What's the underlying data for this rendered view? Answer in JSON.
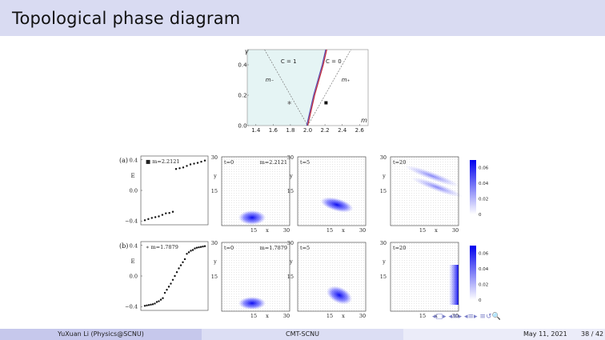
{
  "slide": {
    "title": "Topological phase diagram",
    "footer_author": "YuXuan Li  (Physics@SCNU)",
    "footer_center": "CMT-SCNU",
    "footer_date": "May 11, 2021",
    "footer_page": "38 / 42",
    "nav_icons": [
      "nav-first-icon",
      "nav-prev-frame-icon",
      "nav-prev-section-icon",
      "nav-next-section-icon",
      "nav-prev-subsection-icon",
      "nav-next-subsection-icon",
      "nav-align-icon",
      "nav-search-icon"
    ],
    "nav_glyphs": [
      "◂",
      "□",
      "▸",
      "◂",
      "≡",
      "▸",
      "◂",
      "≡",
      "▸",
      "≡",
      "↺",
      "🔍"
    ]
  },
  "chart_data": [
    {
      "type": "scatter",
      "xlabel": "m",
      "ylabel": "γ",
      "xlim": [
        1.3,
        2.7
      ],
      "ylim": [
        0.0,
        0.5
      ],
      "xticks": [
        "1.4",
        "1.6",
        "1.8",
        "2.0",
        "2.2",
        "2.4",
        "2.6"
      ],
      "yticks": [
        "0.0",
        "0.2",
        "0.4"
      ],
      "region_labels": [
        "C = 1",
        "C = 0"
      ],
      "line_labels": [
        "m₋",
        "m₊"
      ],
      "points": [
        {
          "marker": "star",
          "x": 1.7879,
          "y": 0.15
        },
        {
          "marker": "square",
          "x": 2.2121,
          "y": 0.15
        }
      ],
      "boundary_curve": [
        [
          2.0,
          0.0
        ],
        [
          2.04,
          0.1
        ],
        [
          2.08,
          0.2
        ],
        [
          2.13,
          0.3
        ],
        [
          2.18,
          0.4
        ],
        [
          2.22,
          0.5
        ]
      ]
    },
    {
      "type": "scatter",
      "panel_label": "(a)",
      "legend": "■ m=2.2121",
      "ylabel": "E",
      "yticks": [
        "0.4",
        "0.0",
        "−0.4"
      ],
      "ylim": [
        -0.45,
        0.45
      ],
      "lower_band": [
        -0.39,
        -0.375,
        -0.36,
        -0.35,
        -0.34,
        -0.32,
        -0.3,
        -0.295,
        -0.28
      ],
      "upper_band": [
        0.28,
        0.29,
        0.3,
        0.32,
        0.34,
        0.35,
        0.36,
        0.375,
        0.39
      ],
      "snapshots": [
        {
          "label": "t=0",
          "mass": "m=2.2121"
        },
        {
          "label": "t=5"
        },
        {
          "label": "t=20"
        }
      ]
    },
    {
      "type": "scatter",
      "panel_label": "(b)",
      "legend": "∗ m=1.7879",
      "ylabel": "E",
      "yticks": [
        "0.4",
        "0.0",
        "−0.4"
      ],
      "ylim": [
        -0.45,
        0.45
      ],
      "values": [
        -0.39,
        -0.385,
        -0.38,
        -0.375,
        -0.37,
        -0.36,
        -0.34,
        -0.33,
        -0.31,
        -0.29,
        -0.22,
        -0.18,
        -0.14,
        -0.1,
        -0.05,
        0.0,
        0.05,
        0.1,
        0.14,
        0.18,
        0.22,
        0.29,
        0.31,
        0.33,
        0.34,
        0.36,
        0.37,
        0.375,
        0.38,
        0.385,
        0.39
      ],
      "snapshots": [
        {
          "label": "t=0",
          "mass": "m=1.7879"
        },
        {
          "label": "t=5"
        },
        {
          "label": "t=20"
        }
      ]
    },
    {
      "type": "heatmap",
      "axis_ticks": [
        "15",
        "30"
      ],
      "xlabel": "x",
      "ylabel": "y",
      "colorbar_ticks": [
        "0",
        "0.02",
        "0.04",
        "0.06"
      ],
      "colorbar_range": [
        0,
        0.07
      ]
    }
  ]
}
